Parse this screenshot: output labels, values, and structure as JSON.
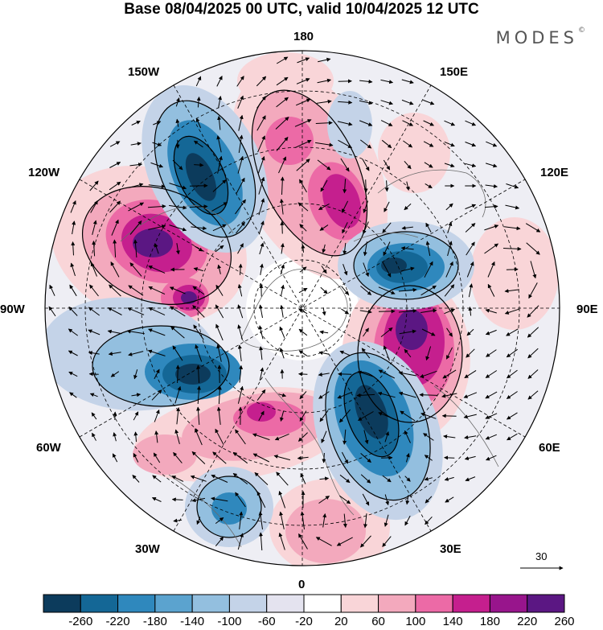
{
  "title": "Base 08/04/2025 00 UTC, valid 10/04/2025 12 UTC",
  "brand": {
    "name": "MODES",
    "mark": "©"
  },
  "longitude_labels": [
    {
      "id": "180",
      "text": "180"
    },
    {
      "id": "150e",
      "text": "150E"
    },
    {
      "id": "120e",
      "text": "120E"
    },
    {
      "id": "90e",
      "text": "90E"
    },
    {
      "id": "60e",
      "text": "60E"
    },
    {
      "id": "30e",
      "text": "30E"
    },
    {
      "id": "0",
      "text": "0"
    },
    {
      "id": "30w",
      "text": "30W"
    },
    {
      "id": "60w",
      "text": "60W"
    },
    {
      "id": "90w",
      "text": "90W"
    },
    {
      "id": "120w",
      "text": "120W"
    },
    {
      "id": "150w",
      "text": "150W"
    }
  ],
  "wind_reference": {
    "value": "30"
  },
  "colorbar": {
    "ticks": [
      "-260",
      "-220",
      "-180",
      "-140",
      "-100",
      "-60",
      "-20",
      "20",
      "60",
      "100",
      "140",
      "180",
      "220",
      "260"
    ],
    "colors": [
      "#0c3b5c",
      "#146796",
      "#2f88bd",
      "#5ba3cf",
      "#93bfdf",
      "#c4d3e8",
      "#e4e3ef",
      "#ffffff",
      "#f9d5d8",
      "#f3a9bd",
      "#ec6aa6",
      "#c51f8e",
      "#98158c",
      "#5b1783"
    ]
  },
  "colors": {
    "positive_strong": "#5b1783",
    "negative_strong": "#0c3b5c",
    "neutral": "#ffffff"
  }
}
